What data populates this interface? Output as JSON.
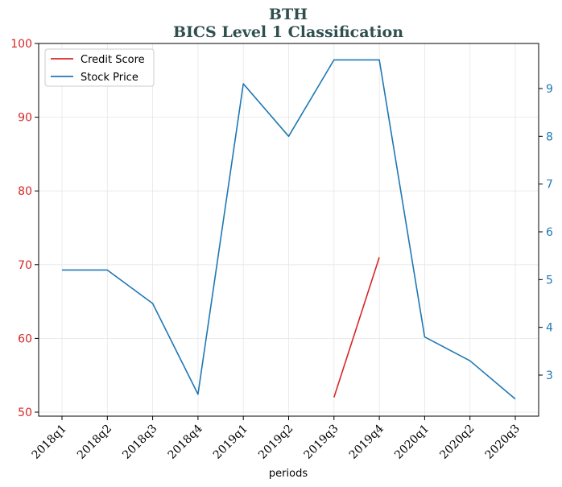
{
  "chart_data": {
    "type": "line",
    "title": "BTH",
    "subtitle": "BICS Level 1 Classification",
    "xlabel": "periods",
    "categories": [
      "2018q1",
      "2018q2",
      "2018q3",
      "2018q4",
      "2019q1",
      "2019q2",
      "2019q3",
      "2019q4",
      "2020q1",
      "2020q2",
      "2020q3"
    ],
    "left_axis": {
      "ylim": [
        49.5,
        100
      ],
      "ticks": [
        50,
        60,
        70,
        80,
        90,
        100
      ]
    },
    "right_axis": {
      "ylim": [
        2.25,
        9.99
      ],
      "ticks": [
        3,
        4,
        5,
        6,
        7,
        8,
        9
      ],
      "tick_labels": [
        "3",
        "4",
        "5",
        "6",
        "7",
        "8",
        "9"
      ]
    },
    "series": [
      {
        "name": "Credit Score",
        "axis": "left",
        "color": "#d62728",
        "values": [
          null,
          null,
          null,
          null,
          null,
          null,
          52,
          71,
          null,
          null,
          null
        ]
      },
      {
        "name": "Stock Price",
        "axis": "right",
        "color": "#1f77b4",
        "values": [
          5.2,
          5.2,
          4.5,
          2.6,
          9.1,
          8.0,
          9.6,
          9.6,
          3.8,
          3.3,
          2.5
        ]
      }
    ],
    "grid": true,
    "legend_position": "top-left",
    "title_color": "#2f4f4f",
    "left_axis_color": "#d62728",
    "right_axis_color": "#1f77b4"
  }
}
